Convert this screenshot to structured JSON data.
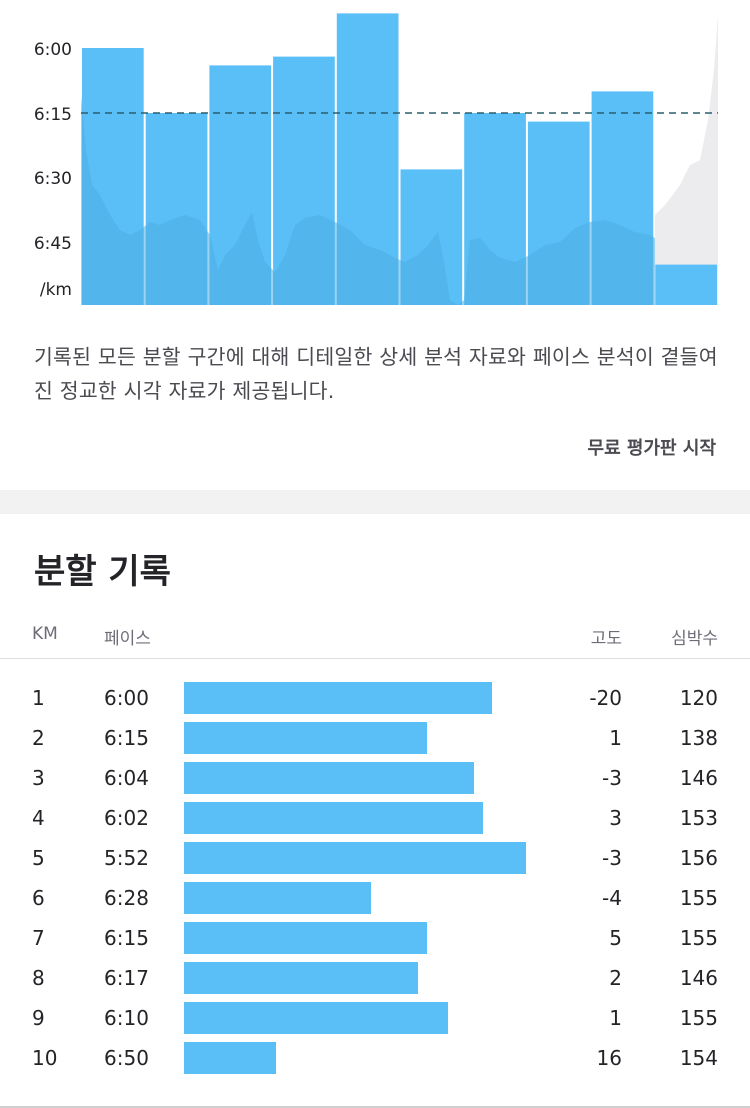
{
  "chart_data": {
    "type": "bar",
    "categories": [
      "1",
      "2",
      "3",
      "4",
      "5",
      "6",
      "7",
      "8",
      "9",
      "10"
    ],
    "series": [
      {
        "values": [
          6.0,
          6.25,
          6.067,
          6.033,
          5.867,
          6.467,
          6.25,
          6.283,
          6.167,
          6.833
        ]
      }
    ],
    "y_tick_labels": [
      "6:00",
      "6:15",
      "6:30",
      "6:45",
      "/km"
    ],
    "average_line": 6.25,
    "colors": {
      "bar": "#5bbff7",
      "area": "#4aaee6",
      "avg_line": "#2b5f6f",
      "trailing_area": "#ececee"
    }
  },
  "description": "기록된 모든 분할 구간에 대해 디테일한 상세 분석 자료와 페이스 분석이 곁들여진 정교한 시각 자료가 제공됩니다.",
  "trial_link": "무료 평가판 시작",
  "splits": {
    "title": "분할 기록",
    "headers": {
      "km": "KM",
      "pace": "페이스",
      "elevation": "고도",
      "heart_rate": "심박수"
    },
    "bar_color": "#5bbff7",
    "rows": [
      {
        "km": "1",
        "pace": "6:00",
        "elevation": "-20",
        "heart_rate": "120",
        "pace_sec": 360
      },
      {
        "km": "2",
        "pace": "6:15",
        "elevation": "1",
        "heart_rate": "138",
        "pace_sec": 375
      },
      {
        "km": "3",
        "pace": "6:04",
        "elevation": "-3",
        "heart_rate": "146",
        "pace_sec": 364
      },
      {
        "km": "4",
        "pace": "6:02",
        "elevation": "3",
        "heart_rate": "153",
        "pace_sec": 362
      },
      {
        "km": "5",
        "pace": "5:52",
        "elevation": "-3",
        "heart_rate": "156",
        "pace_sec": 352
      },
      {
        "km": "6",
        "pace": "6:28",
        "elevation": "-4",
        "heart_rate": "155",
        "pace_sec": 388
      },
      {
        "km": "7",
        "pace": "6:15",
        "elevation": "5",
        "heart_rate": "155",
        "pace_sec": 375
      },
      {
        "km": "8",
        "pace": "6:17",
        "elevation": "2",
        "heart_rate": "146",
        "pace_sec": 377
      },
      {
        "km": "9",
        "pace": "6:10",
        "elevation": "1",
        "heart_rate": "155",
        "pace_sec": 370
      },
      {
        "km": "10",
        "pace": "6:50",
        "elevation": "16",
        "heart_rate": "154",
        "pace_sec": 410
      }
    ]
  }
}
